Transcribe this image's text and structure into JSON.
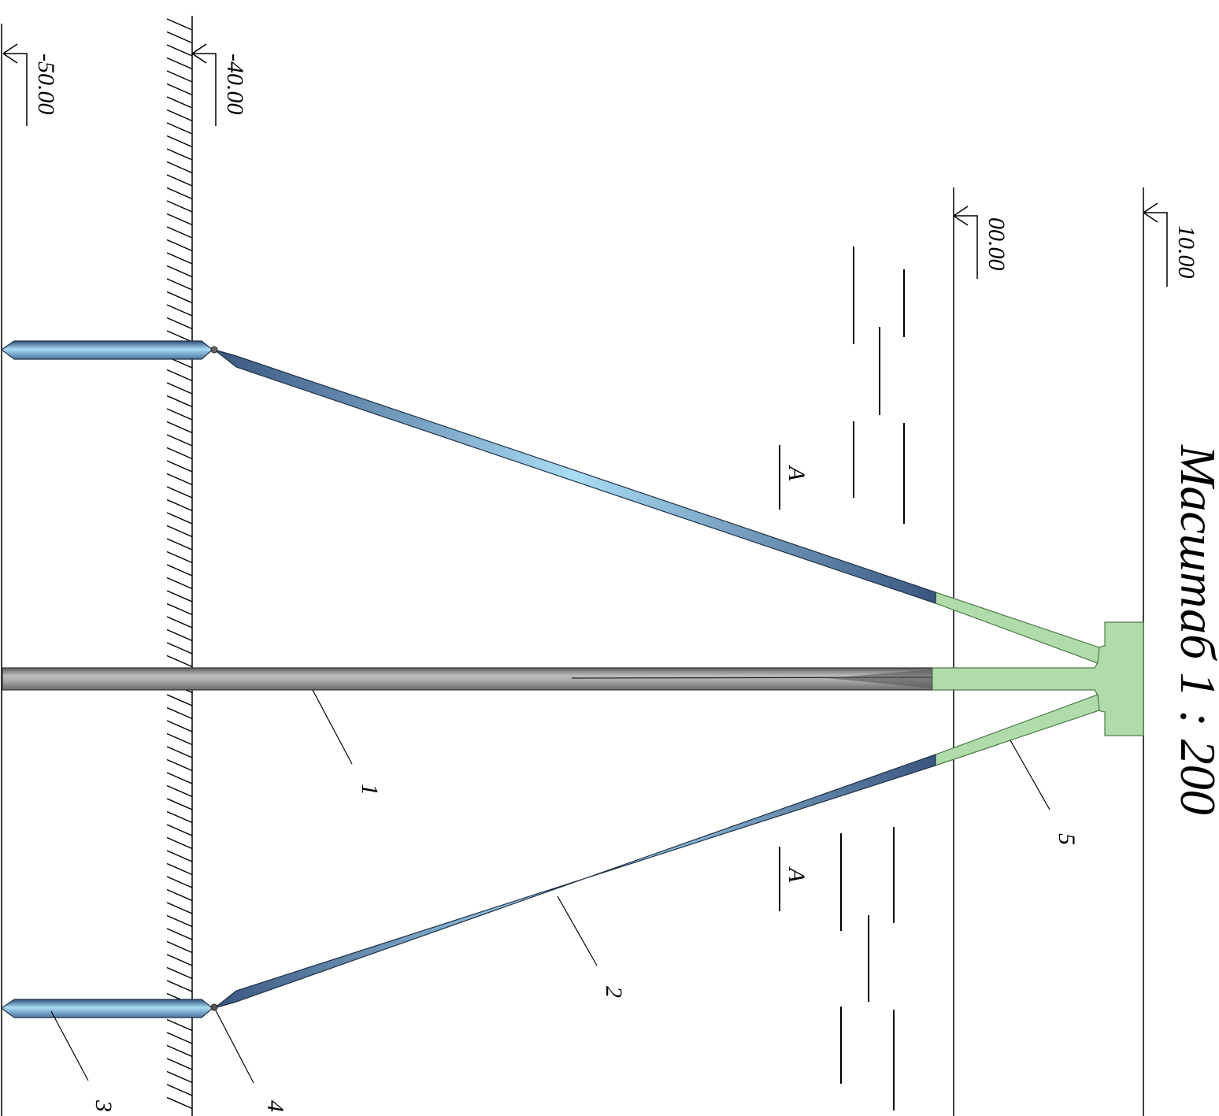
{
  "scale_label": "Масштаб 1 : 200",
  "elevations": [
    "10.00",
    "00.00",
    "-40.00",
    "-50.00"
  ],
  "section_marks": [
    "A",
    "A"
  ],
  "callouts": [
    "1",
    "2",
    "3",
    "4",
    "5"
  ],
  "colors": {
    "pile_gray": "#8f8f8f",
    "anchor_blue_light": "#a9dcf5",
    "anchor_blue_dark": "#3e5f8c",
    "head_green": "#b0dcab",
    "lines": "#000000"
  }
}
